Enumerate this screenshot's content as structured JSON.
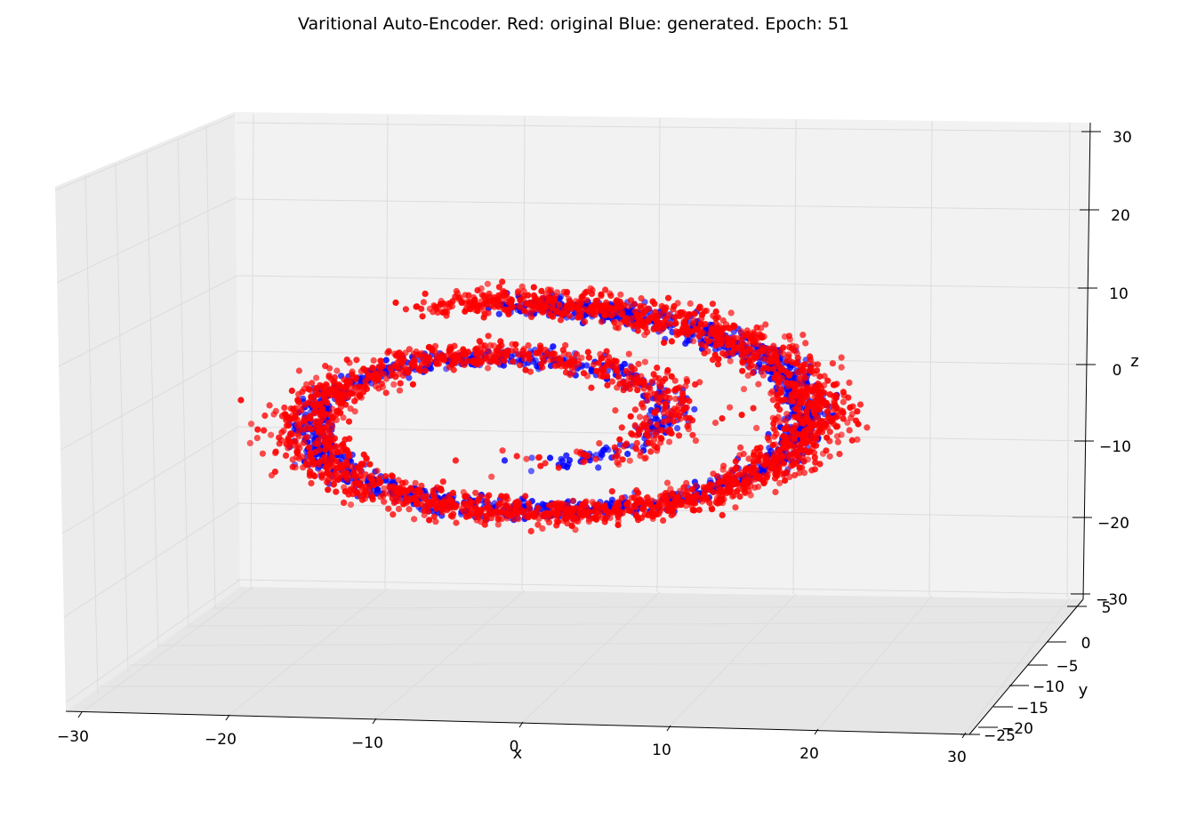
{
  "chart_data": {
    "type": "scatter",
    "dimensions": 3,
    "title": "Varitional Auto-Encoder. Red: original Blue: generated. Epoch: 51",
    "xlabel": "x",
    "ylabel": "y",
    "zlabel": "z",
    "xlim": [
      -30,
      30
    ],
    "ylim": [
      -25,
      5
    ],
    "zlim": [
      -30,
      30
    ],
    "x_ticks": [
      "−30",
      "−20",
      "−10",
      "0",
      "10",
      "20",
      "30"
    ],
    "y_ticks": [
      "5",
      "0",
      "−5",
      "−10",
      "−15",
      "−20",
      "−25"
    ],
    "z_ticks": [
      "30",
      "20",
      "10",
      "0",
      "−10",
      "−20",
      "−30"
    ],
    "grid": true,
    "series": [
      {
        "name": "generated",
        "color": "#0000ff",
        "description_shape": "Swiss-roll spiral in x-z plane, approx y in [-10, 5]",
        "spiral": {
          "theta_start": 4.5,
          "theta_end": 14.2,
          "radius_per_rad": 1.95,
          "noise": 0.7,
          "count": 1600,
          "z_scale": 0.55,
          "z_offset": -3
        }
      },
      {
        "name": "original",
        "color": "#ff0000",
        "description_shape": "Swiss-roll spiral in x-z plane with noise, approx y in [-12, 5]",
        "spiral": {
          "theta_start": 4.5,
          "theta_end": 14.4,
          "radius_per_rad": 2.0,
          "noise": 1.4,
          "count": 2600,
          "z_scale": 0.55,
          "z_offset": -3
        }
      }
    ]
  }
}
